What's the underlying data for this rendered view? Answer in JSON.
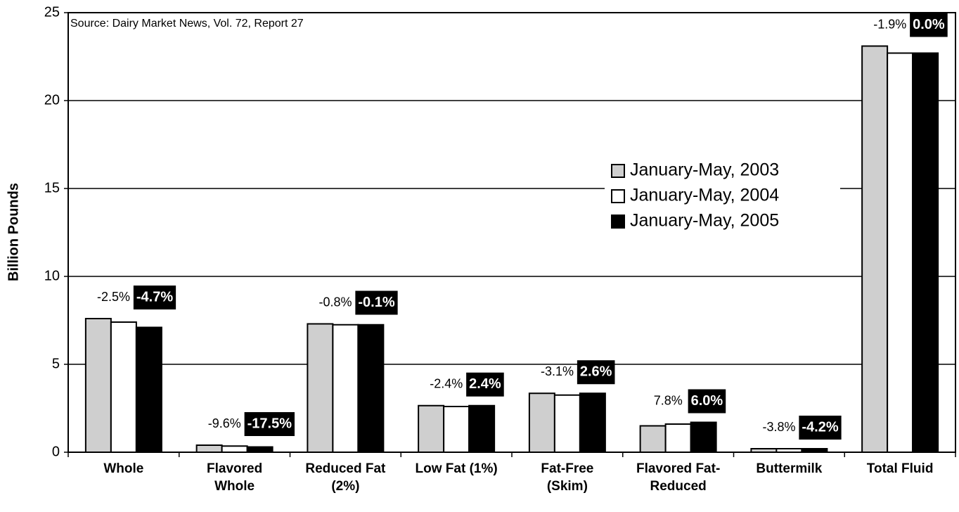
{
  "chart_data": {
    "type": "bar",
    "source": "Source: Dairy Market News, Vol. 72, Report 27",
    "y_label": "Billion Pounds",
    "categories": [
      [
        "Whole"
      ],
      [
        "Flavored",
        "Whole"
      ],
      [
        "Reduced Fat",
        "(2%)"
      ],
      [
        "Low Fat (1%)"
      ],
      [
        "Fat-Free",
        "(Skim)"
      ],
      [
        "Flavored Fat-",
        "Reduced"
      ],
      [
        "Buttermilk"
      ],
      [
        "Total Fluid"
      ]
    ],
    "series": [
      {
        "name": "January-May, 2003",
        "color": "#cfcfcf",
        "values": [
          7.6,
          0.4,
          7.3,
          2.65,
          3.35,
          1.5,
          0.2,
          23.1
        ]
      },
      {
        "name": "January-May, 2004",
        "color": "#ffffff",
        "values": [
          7.4,
          0.35,
          7.25,
          2.6,
          3.25,
          1.6,
          0.2,
          22.7
        ]
      },
      {
        "name": "January-May, 2005",
        "color": "#000000",
        "values": [
          7.1,
          0.3,
          7.25,
          2.65,
          3.35,
          1.7,
          0.2,
          22.7
        ]
      }
    ],
    "change_2004": [
      "-2.5%",
      "-9.6%",
      "-0.8%",
      "-2.4%",
      "-3.1%",
      "7.8%",
      "-3.8%",
      "-1.9%"
    ],
    "change_2005": [
      "-4.7%",
      "-17.5%",
      "-0.1%",
      "2.4%",
      "2.6%",
      "6.0%",
      "-4.2%",
      "0.0%"
    ],
    "ylim": [
      0,
      25
    ],
    "yticks": [
      0,
      5,
      10,
      15,
      20,
      25
    ],
    "grid": true
  }
}
